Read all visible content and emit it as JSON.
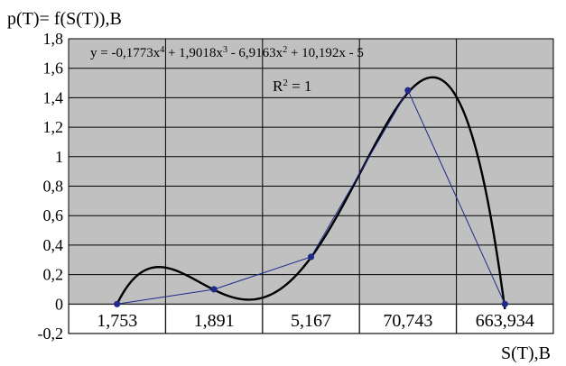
{
  "chart_data": {
    "type": "line",
    "ylabel": "p(T)= f(S(T)),B",
    "xlabel": "S(T),B",
    "categories": [
      "1,753",
      "1,891",
      "5,167",
      "70,743",
      "663,934"
    ],
    "ylim": [
      -0.2,
      1.8
    ],
    "ytick_step": 0.2,
    "ytick_labels": [
      "-0,2",
      "0",
      "0,2",
      "0,4",
      "0,6",
      "0,8",
      "1",
      "1,2",
      "1,4",
      "1,6",
      "1,8"
    ],
    "grid": true,
    "series": [
      {
        "values": [
          0,
          0.1,
          0.32,
          1.45,
          0
        ],
        "color": "#1f2a8a",
        "markers": true
      }
    ],
    "trendline": {
      "type": "polynomial",
      "coefficients": [
        -0.1773,
        1.9018,
        -6.9163,
        10.192,
        -5
      ],
      "color": "#000000"
    },
    "annotation": {
      "equation": {
        "pre": "y = -0,1773x",
        "e1": "4",
        "t2": " + 1,9018x",
        "e2": "3",
        "t3": " - 6,9163x",
        "e3": "2",
        "t4": " + 10,192x - 5"
      },
      "r2": {
        "pre": "R",
        "exp": "2",
        "post": " = 1"
      }
    },
    "plot_background": "#c0c0c0",
    "gridline_color": "#000000"
  }
}
